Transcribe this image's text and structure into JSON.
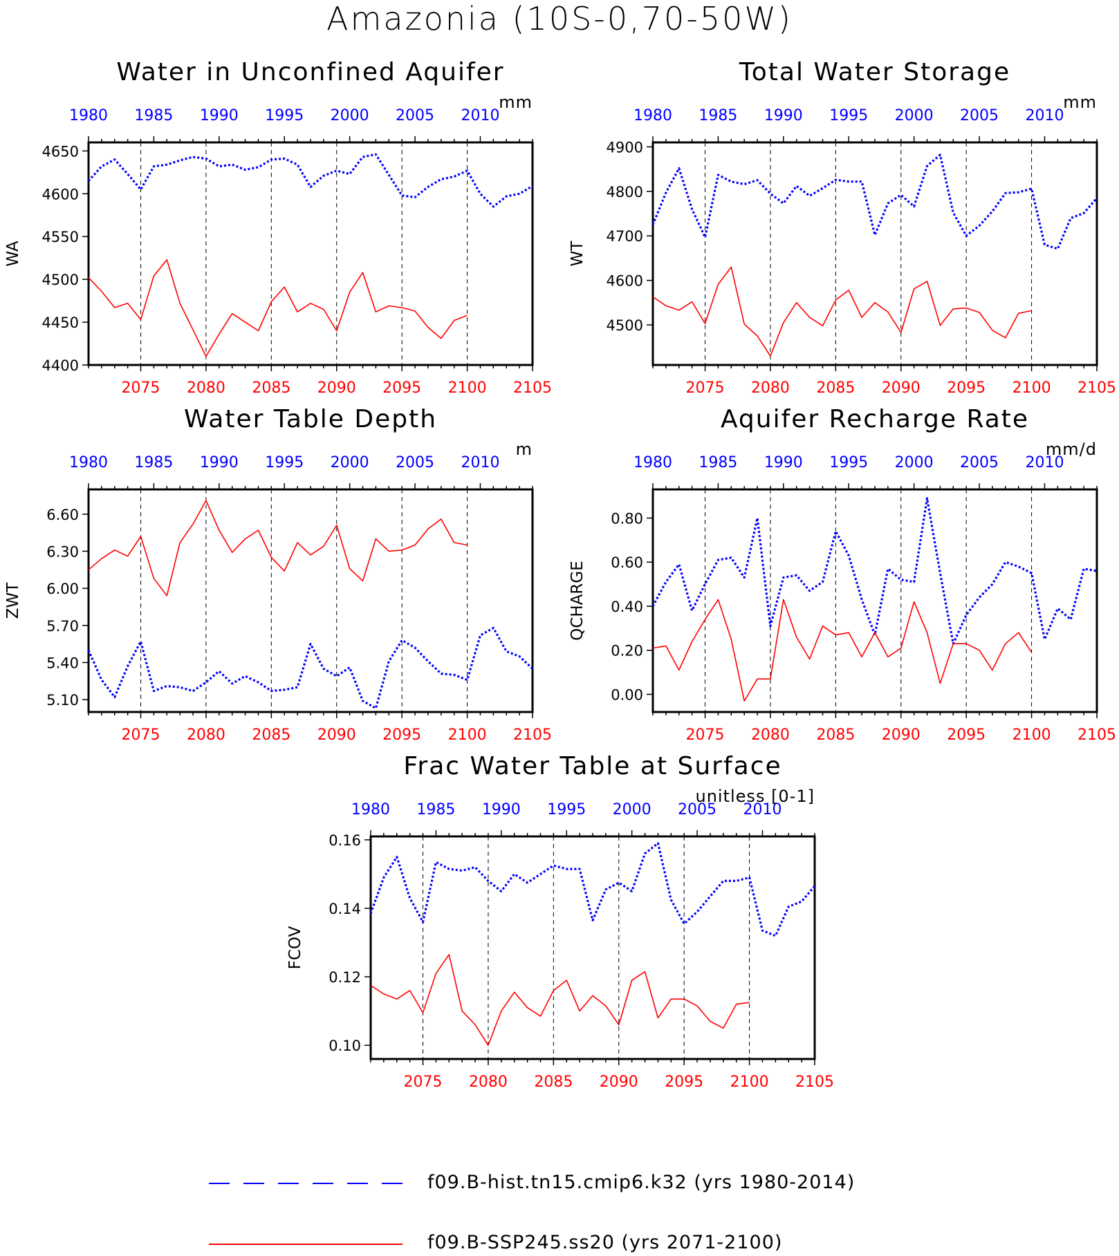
{
  "figure": {
    "title": "Amazonia (10S-0,70-50W)"
  },
  "legend": {
    "hist_label": "f09.B-hist.tn15.cmip6.k32 (yrs 1980-2014)",
    "ssp_label": "f09.B-SSP245.ss20 (yrs 2071-2100)",
    "hist_color": "#0000ff",
    "ssp_color": "#ff0000"
  },
  "chart_data": [
    {
      "type": "line",
      "title": "Water in Unconfined Aquifer",
      "ylabel": "WA",
      "units": "mm",
      "ylim": [
        4400,
        4660
      ],
      "yticks": [
        4400,
        4450,
        4500,
        4550,
        4600,
        4650
      ],
      "ytick_labels": [
        "4400",
        "4450",
        "4500",
        "4550",
        "4600",
        "4650"
      ],
      "xlim_bottom": [
        2071,
        2105
      ],
      "xticks_bottom": [
        2075,
        2080,
        2085,
        2090,
        2095,
        2100,
        2105
      ],
      "xlim_top": [
        1980,
        2014
      ],
      "xticks_top": [
        1980,
        1985,
        1990,
        1995,
        2000,
        2005,
        2010
      ],
      "series": [
        {
          "name": "f09.B-hist.tn15.cmip6.k32 (yrs 1980-2014)",
          "axis": "top",
          "color": "#0000ff",
          "x": [
            1980,
            1981,
            1982,
            1983,
            1984,
            1985,
            1986,
            1987,
            1988,
            1989,
            1990,
            1991,
            1992,
            1993,
            1994,
            1995,
            1996,
            1997,
            1998,
            1999,
            2000,
            2001,
            2002,
            2003,
            2004,
            2005,
            2006,
            2007,
            2008,
            2009,
            2010,
            2011,
            2012,
            2013,
            2014
          ],
          "values": [
            4615,
            4632,
            4640,
            4623,
            4605,
            4632,
            4634,
            4639,
            4643,
            4641,
            4632,
            4634,
            4628,
            4631,
            4640,
            4641,
            4634,
            4608,
            4621,
            4627,
            4623,
            4643,
            4646,
            4622,
            4598,
            4596,
            4608,
            4617,
            4620,
            4627,
            4600,
            4585,
            4597,
            4600,
            4609
          ]
        },
        {
          "name": "f09.B-SSP245.ss20 (yrs 2071-2100)",
          "axis": "bottom",
          "color": "#ff0000",
          "x": [
            2071,
            2072,
            2073,
            2074,
            2075,
            2076,
            2077,
            2078,
            2079,
            2080,
            2081,
            2082,
            2083,
            2084,
            2085,
            2086,
            2087,
            2088,
            2089,
            2090,
            2091,
            2092,
            2093,
            2094,
            2095,
            2096,
            2097,
            2098,
            2099,
            2100
          ],
          "values": [
            4502,
            4486,
            4467,
            4472,
            4453,
            4504,
            4523,
            4472,
            4441,
            4410,
            4436,
            4460,
            4450,
            4440,
            4474,
            4491,
            4462,
            4472,
            4465,
            4440,
            4485,
            4508,
            4462,
            4469,
            4467,
            4463,
            4444,
            4431,
            4452,
            4458
          ]
        }
      ]
    },
    {
      "type": "line",
      "title": "Total Water Storage",
      "ylabel": "WT",
      "units": "mm",
      "ylim": [
        4410,
        4910
      ],
      "yticks": [
        4500,
        4600,
        4700,
        4800,
        4900
      ],
      "ytick_labels": [
        "4500",
        "4600",
        "4700",
        "4800",
        "4900"
      ],
      "xlim_bottom": [
        2071,
        2105
      ],
      "xticks_bottom": [
        2075,
        2080,
        2085,
        2090,
        2095,
        2100,
        2105
      ],
      "xlim_top": [
        1980,
        2014
      ],
      "xticks_top": [
        1980,
        1985,
        1990,
        1995,
        2000,
        2005,
        2010
      ],
      "series": [
        {
          "name": "f09.B-hist.tn15.cmip6.k32 (yrs 1980-2014)",
          "axis": "top",
          "color": "#0000ff",
          "x": [
            1980,
            1981,
            1982,
            1983,
            1984,
            1985,
            1986,
            1987,
            1988,
            1989,
            1990,
            1991,
            1992,
            1993,
            1994,
            1995,
            1996,
            1997,
            1998,
            1999,
            2000,
            2001,
            2002,
            2003,
            2004,
            2005,
            2006,
            2007,
            2008,
            2009,
            2010,
            2011,
            2012,
            2013,
            2014
          ],
          "values": [
            4725,
            4797,
            4852,
            4760,
            4697,
            4837,
            4822,
            4816,
            4825,
            4795,
            4773,
            4812,
            4790,
            4807,
            4826,
            4822,
            4822,
            4702,
            4773,
            4792,
            4766,
            4857,
            4882,
            4752,
            4700,
            4723,
            4755,
            4796,
            4798,
            4806,
            4680,
            4671,
            4740,
            4751,
            4785
          ]
        },
        {
          "name": "f09.B-SSP245.ss20 (yrs 2071-2100)",
          "axis": "bottom",
          "color": "#ff0000",
          "x": [
            2071,
            2072,
            2073,
            2074,
            2075,
            2076,
            2077,
            2078,
            2079,
            2080,
            2081,
            2082,
            2083,
            2084,
            2085,
            2086,
            2087,
            2088,
            2089,
            2090,
            2091,
            2092,
            2093,
            2094,
            2095,
            2096,
            2097,
            2098,
            2099,
            2100
          ],
          "values": [
            4563,
            4543,
            4533,
            4552,
            4503,
            4591,
            4630,
            4502,
            4475,
            4430,
            4505,
            4550,
            4517,
            4498,
            4556,
            4578,
            4517,
            4550,
            4529,
            4483,
            4581,
            4598,
            4499,
            4536,
            4538,
            4528,
            4488,
            4471,
            4526,
            4532
          ]
        }
      ]
    },
    {
      "type": "line",
      "title": "Water Table Depth",
      "ylabel": "ZWT",
      "units": "m",
      "ylim": [
        5.0,
        6.8
      ],
      "yticks": [
        5.1,
        5.4,
        5.7,
        6.0,
        6.3,
        6.6
      ],
      "ytick_labels": [
        "5.10",
        "5.40",
        "5.70",
        "6.00",
        "6.30",
        "6.60"
      ],
      "xlim_bottom": [
        2071,
        2105
      ],
      "xticks_bottom": [
        2075,
        2080,
        2085,
        2090,
        2095,
        2100,
        2105
      ],
      "xlim_top": [
        1980,
        2014
      ],
      "xticks_top": [
        1980,
        1985,
        1990,
        1995,
        2000,
        2005,
        2010
      ],
      "series": [
        {
          "name": "f09.B-hist.tn15.cmip6.k32 (yrs 1980-2014)",
          "axis": "top",
          "color": "#0000ff",
          "x": [
            1980,
            1981,
            1982,
            1983,
            1984,
            1985,
            1986,
            1987,
            1988,
            1989,
            1990,
            1991,
            1992,
            1993,
            1994,
            1995,
            1996,
            1997,
            1998,
            1999,
            2000,
            2001,
            2002,
            2003,
            2004,
            2005,
            2006,
            2007,
            2008,
            2009,
            2010,
            2011,
            2012,
            2013,
            2014
          ],
          "values": [
            5.5,
            5.26,
            5.12,
            5.37,
            5.57,
            5.17,
            5.21,
            5.2,
            5.17,
            5.24,
            5.33,
            5.23,
            5.29,
            5.24,
            5.17,
            5.18,
            5.2,
            5.55,
            5.35,
            5.29,
            5.36,
            5.09,
            5.03,
            5.41,
            5.58,
            5.52,
            5.41,
            5.31,
            5.3,
            5.26,
            5.62,
            5.68,
            5.49,
            5.45,
            5.35
          ]
        },
        {
          "name": "f09.B-SSP245.ss20 (yrs 2071-2100)",
          "axis": "bottom",
          "color": "#ff0000",
          "x": [
            2071,
            2072,
            2073,
            2074,
            2075,
            2076,
            2077,
            2078,
            2079,
            2080,
            2081,
            2082,
            2083,
            2084,
            2085,
            2086,
            2087,
            2088,
            2089,
            2090,
            2091,
            2092,
            2093,
            2094,
            2095,
            2096,
            2097,
            2098,
            2099,
            2100
          ],
          "values": [
            6.15,
            6.24,
            6.31,
            6.26,
            6.42,
            6.08,
            5.94,
            6.37,
            6.52,
            6.71,
            6.47,
            6.29,
            6.4,
            6.47,
            6.25,
            6.14,
            6.37,
            6.27,
            6.34,
            6.51,
            6.16,
            6.06,
            6.4,
            6.3,
            6.31,
            6.35,
            6.48,
            6.56,
            6.37,
            6.35
          ]
        }
      ]
    },
    {
      "type": "line",
      "title": "Aquifer Recharge Rate",
      "ylabel": "QCHARGE",
      "units": "mm/d",
      "ylim": [
        -0.08,
        0.93
      ],
      "yticks": [
        0.0,
        0.2,
        0.4,
        0.6,
        0.8
      ],
      "ytick_labels": [
        "0.00",
        "0.20",
        "0.40",
        "0.60",
        "0.80"
      ],
      "xlim_bottom": [
        2071,
        2105
      ],
      "xticks_bottom": [
        2075,
        2080,
        2085,
        2090,
        2095,
        2100,
        2105
      ],
      "xlim_top": [
        1980,
        2014
      ],
      "xticks_top": [
        1980,
        1985,
        1990,
        1995,
        2000,
        2005,
        2010
      ],
      "series": [
        {
          "name": "f09.B-hist.tn15.cmip6.k32 (yrs 1980-2014)",
          "axis": "top",
          "color": "#0000ff",
          "x": [
            1980,
            1981,
            1982,
            1983,
            1984,
            1985,
            1986,
            1987,
            1988,
            1989,
            1990,
            1991,
            1992,
            1993,
            1994,
            1995,
            1996,
            1997,
            1998,
            1999,
            2000,
            2001,
            2002,
            2003,
            2004,
            2005,
            2006,
            2007,
            2008,
            2009,
            2010,
            2011,
            2012,
            2013,
            2014
          ],
          "values": [
            0.4,
            0.51,
            0.59,
            0.38,
            0.5,
            0.61,
            0.62,
            0.53,
            0.8,
            0.31,
            0.53,
            0.54,
            0.47,
            0.51,
            0.74,
            0.63,
            0.43,
            0.27,
            0.57,
            0.52,
            0.51,
            0.89,
            0.55,
            0.23,
            0.36,
            0.44,
            0.5,
            0.6,
            0.58,
            0.55,
            0.25,
            0.39,
            0.34,
            0.57,
            0.56
          ]
        },
        {
          "name": "f09.B-SSP245.ss20 (yrs 2071-2100)",
          "axis": "bottom",
          "color": "#ff0000",
          "x": [
            2071,
            2072,
            2073,
            2074,
            2075,
            2076,
            2077,
            2078,
            2079,
            2080,
            2081,
            2082,
            2083,
            2084,
            2085,
            2086,
            2087,
            2088,
            2089,
            2090,
            2091,
            2092,
            2093,
            2094,
            2095,
            2096,
            2097,
            2098,
            2099,
            2100
          ],
          "values": [
            0.21,
            0.22,
            0.11,
            0.24,
            0.34,
            0.43,
            0.25,
            -0.03,
            0.07,
            0.07,
            0.43,
            0.26,
            0.16,
            0.31,
            0.27,
            0.28,
            0.17,
            0.28,
            0.17,
            0.21,
            0.42,
            0.28,
            0.05,
            0.23,
            0.23,
            0.2,
            0.11,
            0.23,
            0.28,
            0.19
          ]
        }
      ]
    },
    {
      "type": "line",
      "title": "Frac Water Table at Surface",
      "ylabel": "FCOV",
      "units": "unitless [0-1]",
      "ylim": [
        0.096,
        0.161
      ],
      "yticks": [
        0.1,
        0.12,
        0.14,
        0.16
      ],
      "ytick_labels": [
        "0.10",
        "0.12",
        "0.14",
        "0.16"
      ],
      "xlim_bottom": [
        2071,
        2105
      ],
      "xticks_bottom": [
        2075,
        2080,
        2085,
        2090,
        2095,
        2100,
        2105
      ],
      "xlim_top": [
        1980,
        2014
      ],
      "xticks_top": [
        1980,
        1985,
        1990,
        1995,
        2000,
        2005,
        2010
      ],
      "series": [
        {
          "name": "f09.B-hist.tn15.cmip6.k32 (yrs 1980-2014)",
          "axis": "top",
          "color": "#0000ff",
          "x": [
            1980,
            1981,
            1982,
            1983,
            1984,
            1985,
            1986,
            1987,
            1988,
            1989,
            1990,
            1991,
            1992,
            1993,
            1994,
            1995,
            1996,
            1997,
            1998,
            1999,
            2000,
            2001,
            2002,
            2003,
            2004,
            2005,
            2006,
            2007,
            2008,
            2009,
            2010,
            2011,
            2012,
            2013,
            2014
          ],
          "values": [
            0.1385,
            0.149,
            0.155,
            0.143,
            0.136,
            0.1535,
            0.1515,
            0.151,
            0.152,
            0.148,
            0.145,
            0.15,
            0.1475,
            0.15,
            0.1525,
            0.1515,
            0.1515,
            0.1365,
            0.1455,
            0.1475,
            0.145,
            0.156,
            0.159,
            0.1425,
            0.1355,
            0.139,
            0.1435,
            0.148,
            0.148,
            0.149,
            0.1335,
            0.132,
            0.1405,
            0.142,
            0.1465
          ]
        },
        {
          "name": "f09.B-SSP245.ss20 (yrs 2071-2100)",
          "axis": "bottom",
          "color": "#ff0000",
          "x": [
            2071,
            2072,
            2073,
            2074,
            2075,
            2076,
            2077,
            2078,
            2079,
            2080,
            2081,
            2082,
            2083,
            2084,
            2085,
            2086,
            2087,
            2088,
            2089,
            2090,
            2091,
            2092,
            2093,
            2094,
            2095,
            2096,
            2097,
            2098,
            2099,
            2100
          ],
          "values": [
            0.1175,
            0.115,
            0.1135,
            0.116,
            0.1095,
            0.121,
            0.1265,
            0.11,
            0.106,
            0.1,
            0.11,
            0.1155,
            0.111,
            0.1085,
            0.116,
            0.119,
            0.11,
            0.1145,
            0.1115,
            0.106,
            0.119,
            0.1215,
            0.108,
            0.1135,
            0.1135,
            0.1115,
            0.107,
            0.105,
            0.112,
            0.1125
          ]
        }
      ]
    }
  ]
}
